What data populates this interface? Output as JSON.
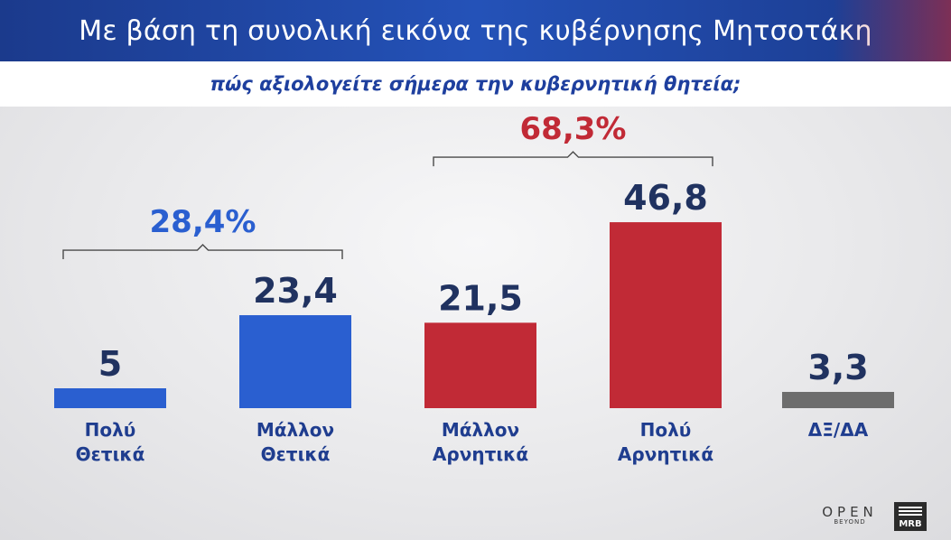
{
  "header": {
    "title": "Με βάση τη συνολική εικόνα της κυβέρνησης Μητσοτάκη",
    "subtitle": "πώς αξιολογείτε σήμερα την κυβερνητική θητεία;"
  },
  "chart_data": {
    "type": "bar",
    "title": "Με βάση τη συνολική εικόνα της κυβέρνησης Μητσοτάκη",
    "subtitle": "πώς αξιολογείτε σήμερα την κυβερνητική θητεία;",
    "categories": [
      [
        "Πολύ",
        "Θετικά"
      ],
      [
        "Μάλλον",
        "Θετικά"
      ],
      [
        "Μάλλον",
        "Αρνητικά"
      ],
      [
        "Πολύ",
        "Αρνητικά"
      ],
      [
        "ΔΞ/ΔΑ"
      ]
    ],
    "values": [
      5,
      23.4,
      21.5,
      46.8,
      3.3
    ],
    "value_labels": [
      "5",
      "23,4",
      "21,5",
      "46,8",
      "3,3"
    ],
    "bar_colors": [
      "#2a5fd0",
      "#2a5fd0",
      "#c12a36",
      "#c12a36",
      "#6d6d6d"
    ],
    "groups": [
      {
        "label": "28,4%",
        "from": 0,
        "to": 1,
        "color": "#2a5fd0"
      },
      {
        "label": "68,3%",
        "from": 2,
        "to": 3,
        "color": "#c12a36"
      }
    ],
    "xlabel": "",
    "ylabel": "",
    "grid": false
  },
  "branding": {
    "channel": "OPEN",
    "channel_sub": "BEYOND",
    "pollster": "MRB"
  }
}
